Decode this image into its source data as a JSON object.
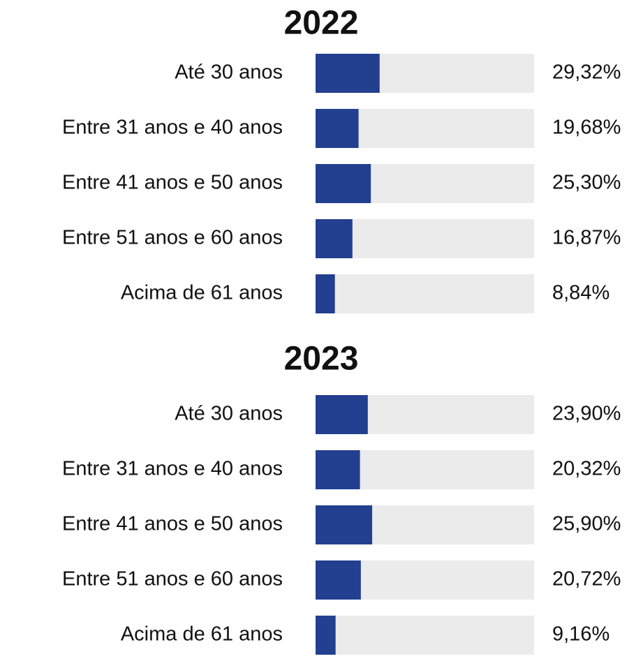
{
  "chart_data": [
    {
      "type": "bar",
      "title": "2022",
      "categories": [
        "Até 30 anos",
        "Entre 31 anos e 40 anos",
        "Entre 41 anos e 50 anos",
        "Entre 51 anos e 60 anos",
        "Acima de 61 anos"
      ],
      "values": [
        29.32,
        19.68,
        25.3,
        16.87,
        8.84
      ],
      "value_labels": [
        "29,32%",
        "19,68%",
        "25,30%",
        "16,87%",
        "8,84%"
      ],
      "color": "#233f8f",
      "xlim": [
        0,
        100
      ]
    },
    {
      "type": "bar",
      "title": "2023",
      "categories": [
        "Até 30 anos",
        "Entre 31 anos e 40 anos",
        "Entre 41 anos e 50 anos",
        "Entre 51 anos e 60 anos",
        "Acima de 61 anos"
      ],
      "values": [
        23.9,
        20.32,
        25.9,
        20.72,
        9.16
      ],
      "value_labels": [
        "23,90%",
        "20,32%",
        "25,90%",
        "20,72%",
        "9,16%"
      ],
      "color": "#233f8f",
      "xlim": [
        0,
        100
      ]
    }
  ]
}
